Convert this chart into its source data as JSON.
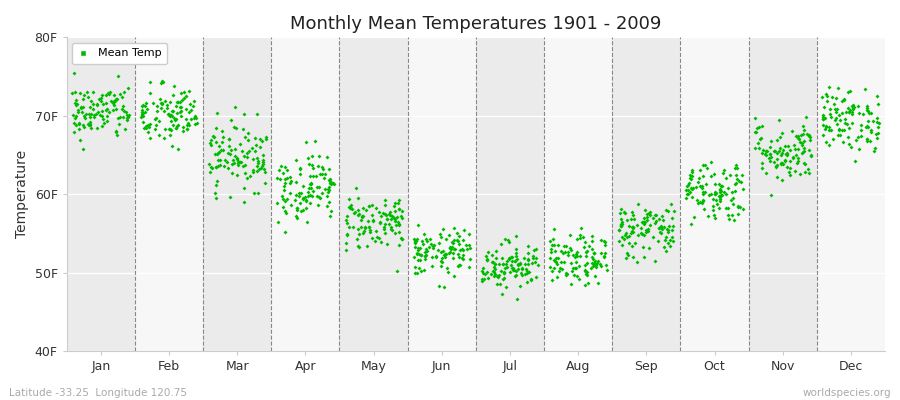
{
  "title": "Monthly Mean Temperatures 1901 - 2009",
  "ylabel": "Temperature",
  "xlabel_bottom_left": "Latitude -33.25  Longitude 120.75",
  "xlabel_bottom_right": "worldspecies.org",
  "legend_label": "Mean Temp",
  "dot_color": "#00bb00",
  "background_color": "#ffffff",
  "band_color_odd": "#ebebeb",
  "band_color_even": "#f7f7f7",
  "ylim": [
    40,
    80
  ],
  "yticks": [
    40,
    50,
    60,
    70,
    80
  ],
  "ytick_labels": [
    "40F",
    "50F",
    "60F",
    "70F",
    "80F"
  ],
  "months": [
    "Jan",
    "Feb",
    "Mar",
    "Apr",
    "May",
    "Jun",
    "Jul",
    "Aug",
    "Sep",
    "Oct",
    "Nov",
    "Dec"
  ],
  "mean_temps_F": [
    70.5,
    70.0,
    65.0,
    61.0,
    56.5,
    52.5,
    51.0,
    51.5,
    55.5,
    60.5,
    65.5,
    69.5
  ],
  "std_temps_F": [
    1.8,
    2.0,
    2.2,
    2.2,
    1.8,
    1.5,
    1.5,
    1.6,
    1.8,
    2.0,
    2.0,
    2.0
  ],
  "n_years": 109,
  "seed": 42
}
